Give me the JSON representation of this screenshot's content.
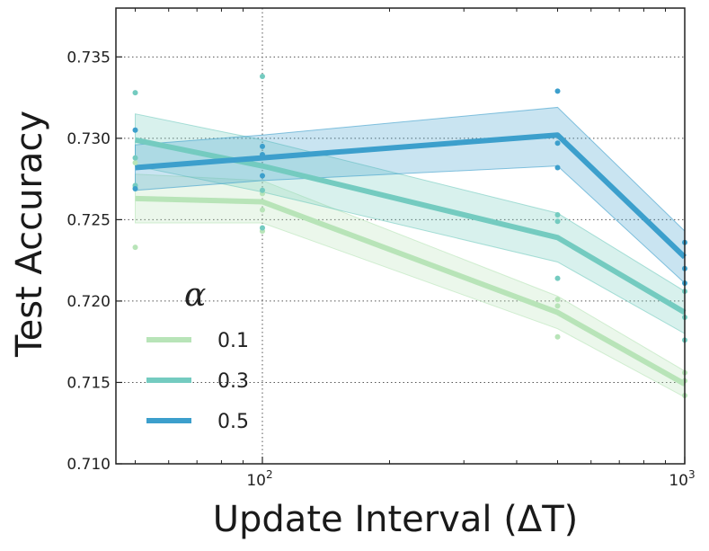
{
  "chart_data": {
    "type": "line",
    "xscale": "log",
    "xlabel": "Update Interval (ΔT)",
    "ylabel": "Test Accuracy",
    "xlim": [
      45,
      1000
    ],
    "ylim": [
      0.71,
      0.738
    ],
    "yticks": [
      "0.710",
      "0.715",
      "0.720",
      "0.725",
      "0.730",
      "0.735"
    ],
    "ytick_values": [
      0.71,
      0.715,
      0.72,
      0.725,
      0.73,
      0.735
    ],
    "xticks": [
      {
        "base": "10",
        "exp": "2",
        "value": 100
      },
      {
        "base": "10",
        "exp": "3",
        "value": 1000
      }
    ],
    "grid": true,
    "legend": {
      "title": "α",
      "position": "lower-left"
    },
    "series": [
      {
        "name": "0.1",
        "color": "#b8e4b8",
        "x": [
          50,
          100,
          500,
          1000
        ],
        "y": [
          0.7263,
          0.7261,
          0.7193,
          0.7149
        ],
        "ci_low": [
          0.7248,
          0.7248,
          0.7183,
          0.7141
        ],
        "ci_high": [
          0.7278,
          0.7274,
          0.7203,
          0.7157
        ],
        "points": [
          [
            50,
            0.7233
          ],
          [
            50,
            0.7285
          ],
          [
            50,
            0.727
          ],
          [
            100,
            0.7256
          ],
          [
            100,
            0.7243
          ],
          [
            100,
            0.7266
          ],
          [
            500,
            0.7178
          ],
          [
            500,
            0.7197
          ],
          [
            500,
            0.7201
          ],
          [
            1000,
            0.7142
          ],
          [
            1000,
            0.7151
          ],
          [
            1000,
            0.7156
          ]
        ]
      },
      {
        "name": "0.3",
        "color": "#74cbc0",
        "x": [
          50,
          100,
          500,
          1000
        ],
        "y": [
          0.7299,
          0.7283,
          0.7239,
          0.7193
        ],
        "ci_low": [
          0.7283,
          0.7267,
          0.7224,
          0.718
        ],
        "ci_high": [
          0.7315,
          0.7299,
          0.7254,
          0.7206
        ],
        "points": [
          [
            50,
            0.7328
          ],
          [
            50,
            0.7288
          ],
          [
            50,
            0.7271
          ],
          [
            100,
            0.7338
          ],
          [
            100,
            0.7268
          ],
          [
            100,
            0.7245
          ],
          [
            500,
            0.7253
          ],
          [
            500,
            0.7249
          ],
          [
            500,
            0.7214
          ],
          [
            1000,
            0.7206
          ],
          [
            1000,
            0.719
          ],
          [
            1000,
            0.7176
          ]
        ]
      },
      {
        "name": "0.5",
        "color": "#3c9fcc",
        "x": [
          50,
          100,
          500,
          1000
        ],
        "y": [
          0.7282,
          0.7288,
          0.7302,
          0.7227
        ],
        "ci_low": [
          0.7268,
          0.7274,
          0.7283,
          0.7211
        ],
        "ci_high": [
          0.7296,
          0.7302,
          0.7319,
          0.7243
        ],
        "points": [
          [
            50,
            0.7305
          ],
          [
            50,
            0.7269
          ],
          [
            100,
            0.7295
          ],
          [
            100,
            0.7277
          ],
          [
            100,
            0.729
          ],
          [
            500,
            0.7329
          ],
          [
            500,
            0.7297
          ],
          [
            500,
            0.7282
          ],
          [
            1000,
            0.7236
          ],
          [
            1000,
            0.722
          ],
          [
            1000,
            0.7211
          ]
        ]
      }
    ]
  }
}
